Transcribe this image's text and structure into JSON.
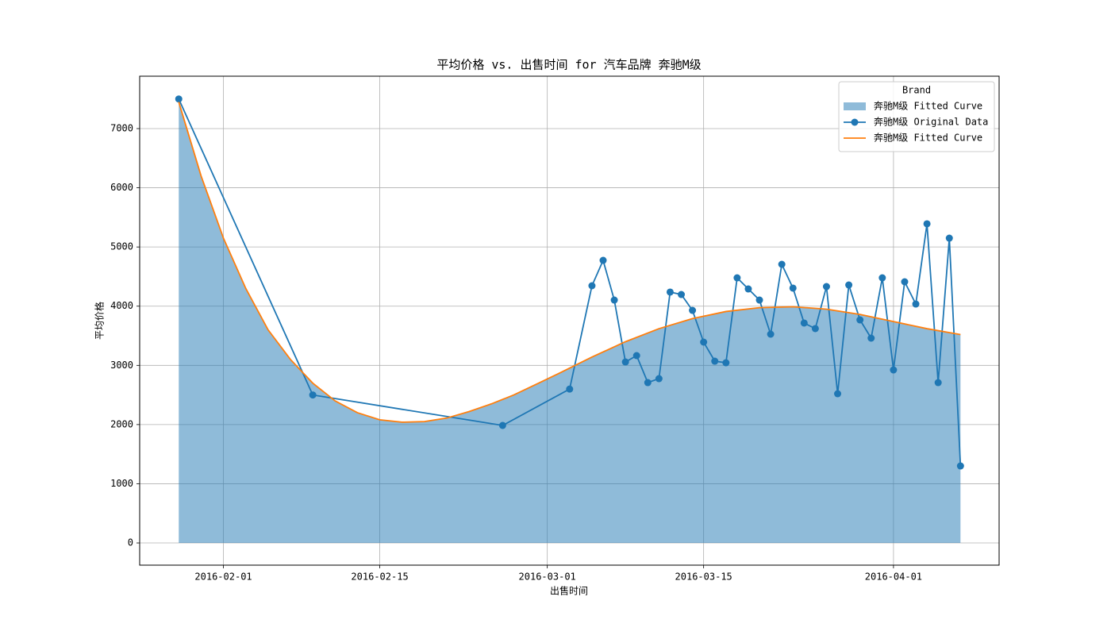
{
  "chart_data": {
    "type": "line",
    "title": "平均价格 vs. 出售时间 for 汽车品牌 奔驰M级",
    "x_label": "出售时间",
    "y_label": "平均价格",
    "xlim": [
      "2016-01-24T12:00",
      "2016-04-10T11:00"
    ],
    "xticks": [
      "2016-02-01",
      "2016-02-15",
      "2016-03-01",
      "2016-03-15",
      "2016-04-01"
    ],
    "ylim": [
      -375,
      7885
    ],
    "yticks": [
      0,
      1000,
      2000,
      3000,
      4000,
      5000,
      6000,
      7000
    ],
    "grid": true,
    "legend_title": "Brand",
    "legend_position": "upper right",
    "series": [
      {
        "name": "奔驰M级 Fitted Curve",
        "kind": "area",
        "color": "#1f77b4",
        "alpha": 0.5,
        "x": [
          "2016-01-28",
          "2016-01-30",
          "2016-02-01",
          "2016-02-03",
          "2016-02-05",
          "2016-02-07",
          "2016-02-09",
          "2016-02-11",
          "2016-02-13",
          "2016-02-15",
          "2016-02-17",
          "2016-02-19",
          "2016-02-21",
          "2016-02-23",
          "2016-02-25",
          "2016-02-27",
          "2016-02-29",
          "2016-03-02",
          "2016-03-05",
          "2016-03-08",
          "2016-03-11",
          "2016-03-14",
          "2016-03-17",
          "2016-03-20",
          "2016-03-23",
          "2016-03-26",
          "2016-03-29",
          "2016-04-01",
          "2016-04-04",
          "2016-04-07"
        ],
        "values": [
          7450,
          6200,
          5150,
          4300,
          3600,
          3100,
          2700,
          2400,
          2200,
          2080,
          2040,
          2050,
          2110,
          2220,
          2350,
          2500,
          2680,
          2860,
          3140,
          3400,
          3620,
          3790,
          3910,
          3975,
          3990,
          3950,
          3860,
          3740,
          3620,
          3520
        ]
      },
      {
        "name": "奔驰M级 Original Data",
        "kind": "line-marker",
        "color": "#1f77b4",
        "x": [
          "2016-01-28",
          "2016-02-09",
          "2016-02-26",
          "2016-03-03",
          "2016-03-05",
          "2016-03-06",
          "2016-03-07",
          "2016-03-08",
          "2016-03-09",
          "2016-03-10",
          "2016-03-11",
          "2016-03-12",
          "2016-03-13",
          "2016-03-14",
          "2016-03-15",
          "2016-03-16",
          "2016-03-17",
          "2016-03-18",
          "2016-03-19",
          "2016-03-20",
          "2016-03-21",
          "2016-03-22",
          "2016-03-23",
          "2016-03-24",
          "2016-03-25",
          "2016-03-26",
          "2016-03-27",
          "2016-03-28",
          "2016-03-29",
          "2016-03-30",
          "2016-03-31",
          "2016-04-01",
          "2016-04-02",
          "2016-04-03",
          "2016-04-04",
          "2016-04-05",
          "2016-04-06",
          "2016-04-07"
        ],
        "values": [
          7500,
          2500,
          1985,
          2600,
          4345,
          4774,
          4103,
          3057,
          3165,
          2709,
          2776,
          4238,
          4197,
          3929,
          3393,
          3071,
          3044,
          4479,
          4291,
          4103,
          3527,
          4707,
          4305,
          3715,
          3621,
          4331,
          2521,
          4358,
          3768,
          3460,
          4479,
          2923,
          4412,
          4036,
          5391,
          2709,
          5149,
          1301
        ]
      },
      {
        "name": "奔驰M级 Fitted Curve",
        "kind": "line",
        "color": "#ff7f0e",
        "x": [
          "2016-01-28",
          "2016-01-30",
          "2016-02-01",
          "2016-02-03",
          "2016-02-05",
          "2016-02-07",
          "2016-02-09",
          "2016-02-11",
          "2016-02-13",
          "2016-02-15",
          "2016-02-17",
          "2016-02-19",
          "2016-02-21",
          "2016-02-23",
          "2016-02-25",
          "2016-02-27",
          "2016-02-29",
          "2016-03-02",
          "2016-03-05",
          "2016-03-08",
          "2016-03-11",
          "2016-03-14",
          "2016-03-17",
          "2016-03-20",
          "2016-03-23",
          "2016-03-26",
          "2016-03-29",
          "2016-04-01",
          "2016-04-04",
          "2016-04-07"
        ],
        "values": [
          7450,
          6200,
          5150,
          4300,
          3600,
          3100,
          2700,
          2400,
          2200,
          2080,
          2040,
          2050,
          2110,
          2220,
          2350,
          2500,
          2680,
          2860,
          3140,
          3400,
          3620,
          3790,
          3910,
          3975,
          3990,
          3950,
          3860,
          3740,
          3620,
          3520
        ]
      }
    ]
  }
}
